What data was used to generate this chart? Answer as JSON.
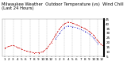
{
  "title": "Milwaukee Weather  Outdoor Temperature (vs)  Wind Chill (Last 24 Hours)",
  "temp_color": "#cc0000",
  "wind_chill_color": "#0000bb",
  "background_color": "#ffffff",
  "grid_color": "#888888",
  "temp_values": [
    14,
    16,
    17,
    15,
    13,
    11,
    10,
    9,
    9,
    10,
    14,
    20,
    28,
    35,
    40,
    42,
    41,
    39,
    37,
    35,
    32,
    28,
    22,
    17
  ],
  "wind_chill_values": [
    null,
    null,
    null,
    null,
    null,
    null,
    null,
    null,
    null,
    null,
    null,
    null,
    24,
    30,
    36,
    38,
    37,
    36,
    34,
    32,
    29,
    25,
    19,
    null
  ],
  "x_labels": [
    "1",
    "2",
    "3",
    "4",
    "5",
    "6",
    "7",
    "8",
    "9",
    "10",
    "11",
    "12",
    "1",
    "2",
    "3",
    "4",
    "5",
    "6",
    "7",
    "8",
    "9",
    "10",
    "11",
    "12"
  ],
  "ylim": [
    5,
    45
  ],
  "yticks": [
    5,
    10,
    15,
    20,
    25,
    30,
    35,
    40,
    45
  ],
  "ytick_labels": [
    "5",
    "10",
    "15",
    "20",
    "25",
    "30",
    "35",
    "40",
    "45"
  ],
  "title_fontsize": 3.8,
  "tick_fontsize": 3.0,
  "legend_fontsize": 3.5
}
